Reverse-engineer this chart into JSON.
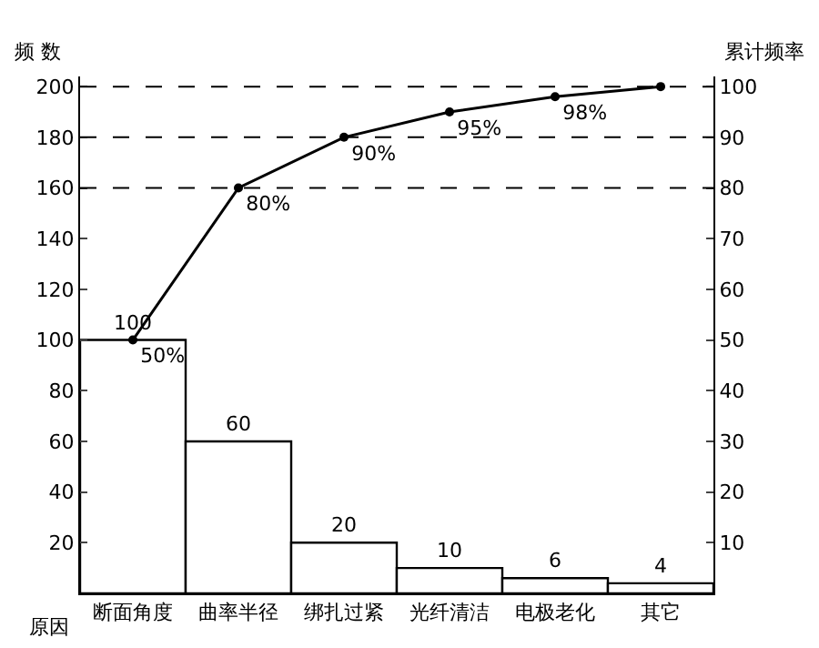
{
  "chart_data": {
    "type": "bar",
    "xlabel": "原因",
    "ylabel": "频 数",
    "y2label": "累计频率",
    "categories": [
      "断面角度",
      "曲率半径",
      "绑扎过紧",
      "光纤清洁",
      "电极老化",
      "其它"
    ],
    "series": [
      {
        "type": "bar",
        "color": "#ffffff",
        "values": [
          100,
          60,
          20,
          10,
          6,
          4
        ],
        "value_labels": [
          "100",
          "60",
          "20",
          "10",
          "6",
          "4"
        ]
      },
      {
        "type": "line",
        "axis": "y2",
        "color": "#000000",
        "values": [
          50,
          80,
          90,
          95,
          98,
          100
        ],
        "value_labels": [
          "50%",
          "80%",
          "90%",
          "95%",
          "98%",
          null
        ]
      }
    ],
    "ylim": [
      0,
      204
    ],
    "yticks": [
      20,
      40,
      60,
      80,
      100,
      120,
      140,
      160,
      180,
      200
    ],
    "y2lim": [
      0,
      102
    ],
    "y2ticks": [
      10,
      20,
      30,
      40,
      50,
      60,
      70,
      80,
      90,
      100
    ],
    "ref_lines": [
      {
        "axis": "y2",
        "value": 100,
        "label": null,
        "line_style": "dashed"
      },
      {
        "axis": "y2",
        "value": 90,
        "label": null,
        "line_style": "dashed"
      },
      {
        "axis": "y2",
        "value": 80,
        "label": null,
        "line_style": "dashed"
      }
    ],
    "marker": "circle",
    "line_style": "solid"
  }
}
